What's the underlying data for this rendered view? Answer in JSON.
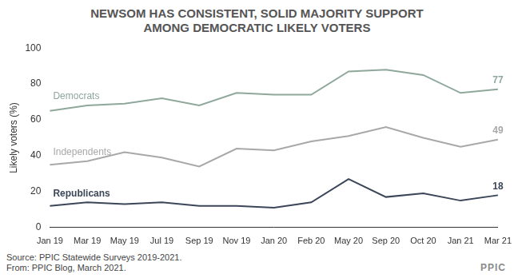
{
  "chart_data": {
    "type": "line",
    "title": "NEWSOM HAS CONSISTENT, SOLID MAJORITY SUPPORT AMONG DEMOCRATIC LIKELY VOTERS",
    "y_label": "Likely voters (%)",
    "source": "Source: PPIC Statewide Surveys 2019-2021.",
    "note": "From: PPIC Blog, March 2021.",
    "logo": "PPIC",
    "categories": [
      "Jan 19",
      "Mar 19",
      "May 19",
      "Jul 19",
      "Sep 19",
      "Nov 19",
      "Jan 20",
      "Feb 20",
      "May 20",
      "Sep 20",
      "Oct 20",
      "Jan 21",
      "Mar 21"
    ],
    "series": [
      {
        "name": "Democrats",
        "color": "#8fa89b",
        "values": [
          65,
          68,
          69,
          72,
          68,
          75,
          74,
          74,
          87,
          88,
          85,
          75,
          77
        ],
        "value_labels": [
          null,
          null,
          null,
          null,
          null,
          null,
          null,
          null,
          null,
          null,
          null,
          null,
          "77"
        ]
      },
      {
        "name": "Independents",
        "color": "#a8a8a8",
        "values": [
          35,
          37,
          42,
          39,
          34,
          44,
          43,
          48,
          51,
          56,
          50,
          45,
          49
        ],
        "value_labels": [
          null,
          null,
          null,
          null,
          null,
          null,
          null,
          null,
          null,
          null,
          null,
          null,
          "49"
        ]
      },
      {
        "name": "Republicans",
        "color": "#3b4658",
        "values": [
          12,
          14,
          13,
          14,
          12,
          12,
          11,
          14,
          27,
          17,
          19,
          15,
          18
        ],
        "value_labels": [
          null,
          null,
          null,
          null,
          null,
          null,
          null,
          null,
          null,
          null,
          null,
          null,
          "18"
        ]
      }
    ],
    "ylim": [
      0,
      100
    ],
    "yticks": [
      0,
      20,
      40,
      60,
      80,
      100
    ],
    "grid": false
  }
}
